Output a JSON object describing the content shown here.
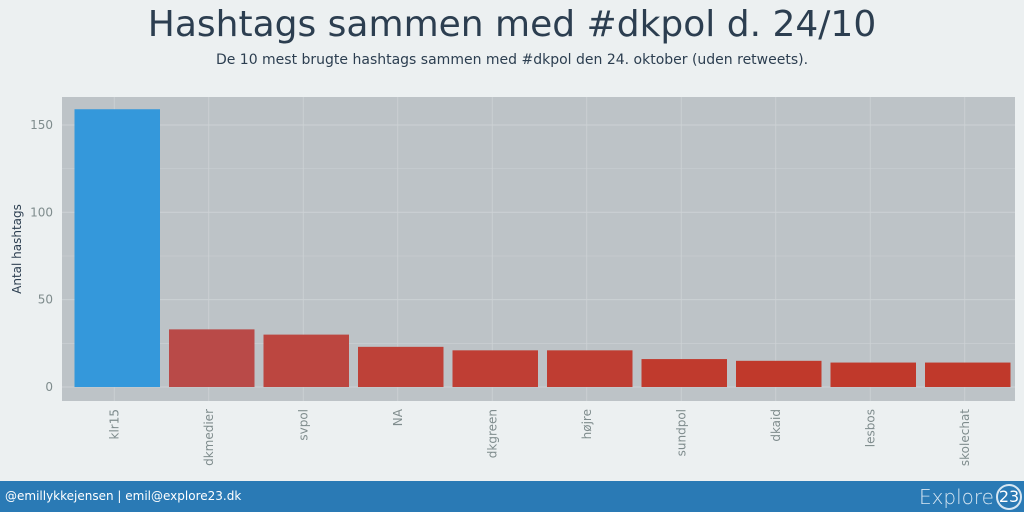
{
  "header": {
    "title": "Hashtags sammen med #dkpol d. 24/10",
    "subtitle": "De 10 mest brugte hashtags sammen med #dkpol den 24. oktober (uden retweets)."
  },
  "footer": {
    "credit": "@emillykkejensen | emil@explore23.dk",
    "logo_word": "Explore",
    "logo_number": "23"
  },
  "chart_data": {
    "type": "bar",
    "title": "Hashtags sammen med #dkpol d. 24/10",
    "subtitle": "De 10 mest brugte hashtags sammen med #dkpol den 24. oktober (uden retweets).",
    "xlabel": "",
    "ylabel": "Antal hashtags",
    "categories": [
      "klr15",
      "dkmedier",
      "svpol",
      "NA",
      "dkgreen",
      "højre",
      "sundpol",
      "dkaid",
      "lesbos",
      "skolechat"
    ],
    "values": [
      159,
      33,
      30,
      23,
      21,
      21,
      16,
      15,
      14,
      14
    ],
    "ylim": [
      -8,
      166
    ],
    "yticks": [
      0,
      50,
      100,
      150
    ],
    "grid": true,
    "legend": "none",
    "colors": {
      "highlight": "#3498db",
      "bars": [
        "#3498db",
        "#b94a48",
        "#bc4640",
        "#be4138",
        "#bf3e34",
        "#bf3d32",
        "#c03a2d",
        "#c0392b",
        "#c0392b",
        "#c0392b"
      ],
      "panel": "#bdc3c7",
      "grid": "#cdd2d5",
      "axis_text": "#7f8c8d"
    }
  }
}
